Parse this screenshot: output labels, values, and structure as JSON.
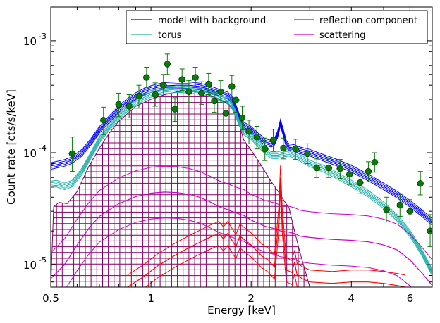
{
  "chart_data": {
    "type": "line",
    "title": "",
    "xlabel": "Energy [keV]",
    "ylabel": "Count rate [cts/s/keV]",
    "xscale": "log",
    "yscale": "log",
    "xlim": [
      0.5,
      7.0
    ],
    "ylim": [
      6.3e-06,
      0.002
    ],
    "grid": false,
    "legend_position": "top-right",
    "x_ticks": [
      {
        "value": 0.5,
        "label": "0.5"
      },
      {
        "value": 1,
        "label": "1"
      },
      {
        "value": 2,
        "label": "2"
      },
      {
        "value": 4,
        "label": "4"
      },
      {
        "value": 6,
        "label": "6"
      }
    ],
    "y_ticks": [
      {
        "value": 1e-05,
        "base": "10",
        "exp": "-5"
      },
      {
        "value": 0.0001,
        "base": "10",
        "exp": "-4"
      },
      {
        "value": 0.001,
        "base": "10",
        "exp": "-3"
      }
    ],
    "legend": [
      {
        "label": "model with background",
        "color": "#0000ff"
      },
      {
        "label": "torus",
        "color": "#20b2aa"
      },
      {
        "label": "reflection component",
        "color": "#ff0000"
      },
      {
        "label": "scattering",
        "color": "#cc00cc"
      }
    ],
    "series": [
      {
        "name": "model with background",
        "color": "#0000ff",
        "band_factor": 1.07,
        "points": [
          [
            0.5,
            7.6e-05
          ],
          [
            0.52,
            7.8e-05
          ],
          [
            0.55,
            8.1e-05
          ],
          [
            0.58,
            8.6e-05
          ],
          [
            0.62,
            0.0001
          ],
          [
            0.66,
            0.000125
          ],
          [
            0.7,
            0.00016
          ],
          [
            0.75,
            0.0002
          ],
          [
            0.8,
            0.000245
          ],
          [
            0.85,
            0.000285
          ],
          [
            0.9,
            0.00032
          ],
          [
            0.95,
            0.00035
          ],
          [
            1.0,
            0.00037
          ],
          [
            1.05,
            0.000385
          ],
          [
            1.1,
            0.000395
          ],
          [
            1.2,
            0.0004
          ],
          [
            1.3,
            0.0004
          ],
          [
            1.4,
            0.00039
          ],
          [
            1.5,
            0.00037
          ],
          [
            1.6,
            0.000345
          ],
          [
            1.7,
            0.000325
          ],
          [
            1.75,
            0.0003
          ],
          [
            1.8,
            0.00025
          ],
          [
            1.85,
            0.0002
          ],
          [
            1.9,
            0.000175
          ],
          [
            2.0,
            0.00016
          ],
          [
            2.1,
            0.00014
          ],
          [
            2.2,
            0.000125
          ],
          [
            2.3,
            0.00012
          ],
          [
            2.35,
            0.000125
          ],
          [
            2.4,
            0.000145
          ],
          [
            2.45,
            0.000185
          ],
          [
            2.5,
            0.00015
          ],
          [
            2.55,
            0.00012
          ],
          [
            2.6,
            0.000112
          ],
          [
            2.7,
            0.00011
          ],
          [
            2.8,
            0.000105
          ],
          [
            3.0,
            0.0001
          ],
          [
            3.3,
            9e-05
          ],
          [
            3.6,
            8.2e-05
          ],
          [
            4.0,
            7.2e-05
          ],
          [
            4.5,
            6e-05
          ],
          [
            5.0,
            5e-05
          ],
          [
            5.5,
            4.2e-05
          ],
          [
            6.0,
            3.5e-05
          ],
          [
            6.5,
            2.9e-05
          ],
          [
            7.0,
            2.4e-05
          ]
        ]
      },
      {
        "name": "torus",
        "color": "#20b2aa",
        "band_factor": 1.07,
        "points": [
          [
            0.5,
            5.2e-05
          ],
          [
            0.52,
            5.3e-05
          ],
          [
            0.55,
            5e-05
          ],
          [
            0.58,
            5.3e-05
          ],
          [
            0.62,
            6.8e-05
          ],
          [
            0.66,
            9.5e-05
          ],
          [
            0.7,
            0.00013
          ],
          [
            0.75,
            0.00017
          ],
          [
            0.8,
            0.00021
          ],
          [
            0.85,
            0.00025
          ],
          [
            0.9,
            0.000285
          ],
          [
            0.95,
            0.00031
          ],
          [
            1.0,
            0.000335
          ],
          [
            1.05,
            0.00035
          ],
          [
            1.1,
            0.00036
          ],
          [
            1.2,
            0.00037
          ],
          [
            1.3,
            0.000365
          ],
          [
            1.4,
            0.000355
          ],
          [
            1.5,
            0.00034
          ],
          [
            1.6,
            0.000315
          ],
          [
            1.7,
            0.00029
          ],
          [
            1.75,
            0.000265
          ],
          [
            1.8,
            0.00022
          ],
          [
            1.85,
            0.00018
          ],
          [
            1.9,
            0.000155
          ],
          [
            2.0,
            0.00014
          ],
          [
            2.1,
            0.00012
          ],
          [
            2.2,
            0.000105
          ],
          [
            2.3,
            9.5e-05
          ],
          [
            2.4,
            9.5e-05
          ],
          [
            2.5,
            9.8e-05
          ],
          [
            2.6,
            0.0001
          ],
          [
            2.7,
            9.5e-05
          ],
          [
            2.8,
            9e-05
          ],
          [
            3.0,
            8e-05
          ],
          [
            3.3,
            7.2e-05
          ],
          [
            3.6,
            6.3e-05
          ],
          [
            4.0,
            5.3e-05
          ],
          [
            4.5,
            4.3e-05
          ],
          [
            5.0,
            3.4e-05
          ],
          [
            5.5,
            2.6e-05
          ],
          [
            6.0,
            1.9e-05
          ],
          [
            6.5,
            1.3e-05
          ],
          [
            7.0,
            8.5e-06
          ]
        ]
      },
      {
        "name": "reflection component",
        "color": "#ff0000",
        "band_factor": 1.28,
        "points": [
          [
            0.85,
            6.3e-06
          ],
          [
            0.95,
            7.8e-06
          ],
          [
            1.05,
            9.8e-06
          ],
          [
            1.2,
            1.25e-05
          ],
          [
            1.35,
            1.5e-05
          ],
          [
            1.5,
            1.75e-05
          ],
          [
            1.6,
            1.9e-05
          ],
          [
            1.65,
            1.7e-05
          ],
          [
            1.7,
            1.9e-05
          ],
          [
            1.8,
            1.45e-05
          ],
          [
            1.85,
            1.8e-05
          ],
          [
            2.0,
            1.5e-05
          ],
          [
            2.15,
            1.2e-05
          ],
          [
            2.25,
            1.1e-05
          ],
          [
            2.35,
            9.5e-06
          ],
          [
            2.42,
            2.5e-05
          ],
          [
            2.45,
            6e-05
          ],
          [
            2.48,
            2.5e-05
          ],
          [
            2.55,
            9e-06
          ],
          [
            2.65,
            8.5e-06
          ],
          [
            2.7,
            1.05e-05
          ],
          [
            2.75,
            8e-06
          ],
          [
            2.85,
            7.5e-06
          ],
          [
            3.0,
            7e-06
          ],
          [
            3.5,
            6.8e-06
          ],
          [
            4.0,
            7e-06
          ],
          [
            4.5,
            7e-06
          ],
          [
            5.0,
            6.8e-06
          ],
          [
            5.5,
            6.5e-06
          ],
          [
            5.8,
            6.3e-06
          ]
        ]
      },
      {
        "name": "scattering",
        "color": "#cc00cc",
        "band_factor": 1.7,
        "points": [
          [
            0.5,
            7.5e-06
          ],
          [
            0.55,
            1e-05
          ],
          [
            0.6,
            1.5e-05
          ],
          [
            0.65,
            2.1e-05
          ],
          [
            0.7,
            2.7e-05
          ],
          [
            0.8,
            3.5e-05
          ],
          [
            0.9,
            4.05e-05
          ],
          [
            1.0,
            4.35e-05
          ],
          [
            1.1,
            4.45e-05
          ],
          [
            1.2,
            4.4e-05
          ],
          [
            1.3,
            4.25e-05
          ],
          [
            1.4,
            4e-05
          ],
          [
            1.5,
            3.65e-05
          ],
          [
            1.6,
            3.3e-05
          ],
          [
            1.7,
            3.1e-05
          ],
          [
            1.8,
            2.9e-05
          ],
          [
            1.9,
            2.75e-05
          ],
          [
            2.0,
            2.5e-05
          ],
          [
            2.2,
            2.2e-05
          ],
          [
            2.35,
            2.1e-05
          ],
          [
            2.45,
            2e-05
          ],
          [
            2.6,
            1.95e-05
          ],
          [
            2.7,
            1.9e-05
          ],
          [
            2.8,
            1.8e-05
          ],
          [
            3.0,
            1.75e-05
          ],
          [
            3.5,
            1.68e-05
          ],
          [
            4.0,
            1.65e-05
          ],
          [
            4.5,
            1.6e-05
          ],
          [
            5.0,
            1.5e-05
          ],
          [
            5.5,
            1.35e-05
          ],
          [
            6.0,
            1.1e-05
          ],
          [
            6.5,
            8.5e-06
          ],
          [
            7.0,
            6.5e-06
          ]
        ]
      },
      {
        "name": "",
        "role": "hatched-region",
        "color": "#800060",
        "points": [
          [
            0.5,
            6.3e-06
          ],
          [
            0.51,
            3.3e-05
          ],
          [
            0.53,
            3.6e-05
          ],
          [
            0.56,
            3.5e-05
          ],
          [
            0.6,
            4.5e-05
          ],
          [
            0.65,
            7.5e-05
          ],
          [
            0.7,
            0.00011
          ],
          [
            0.75,
            0.00015
          ],
          [
            0.8,
            0.00019
          ],
          [
            0.9,
            0.00026
          ],
          [
            1.0,
            0.0003
          ],
          [
            1.1,
            0.00033
          ],
          [
            1.2,
            0.00035
          ],
          [
            1.3,
            0.000355
          ],
          [
            1.4,
            0.000345
          ],
          [
            1.5,
            0.000325
          ],
          [
            1.6,
            0.0003
          ],
          [
            1.7,
            0.000275
          ],
          [
            1.8,
            0.00023
          ],
          [
            1.85,
            0.00017
          ],
          [
            1.9,
            0.00013
          ],
          [
            2.0,
            0.000105
          ],
          [
            2.1,
            8.5e-05
          ],
          [
            2.2,
            6.8e-05
          ],
          [
            2.3,
            5.5e-05
          ],
          [
            2.4,
            4.6e-05
          ],
          [
            2.5,
            3.8e-05
          ],
          [
            2.6,
            3.2e-05
          ],
          [
            2.7,
            2e-05
          ],
          [
            2.8,
            1.3e-05
          ],
          [
            2.9,
            9e-06
          ],
          [
            3.0,
            6.3e-06
          ]
        ]
      }
    ],
    "data_points": [
      {
        "x": 0.58,
        "y": 9.8e-05,
        "yerr_lo": 6.8e-05,
        "yerr_hi": 0.000138
      },
      {
        "x": 0.72,
        "y": 0.000195,
        "yerr_lo": 0.000145,
        "yerr_hi": 0.000255
      },
      {
        "x": 0.8,
        "y": 0.00027,
        "yerr_lo": 0.00021,
        "yerr_hi": 0.00034
      },
      {
        "x": 0.86,
        "y": 0.00026,
        "yerr_lo": 0.000205,
        "yerr_hi": 0.00033
      },
      {
        "x": 0.92,
        "y": 0.00032,
        "yerr_lo": 0.00025,
        "yerr_hi": 0.0004
      },
      {
        "x": 0.97,
        "y": 0.00047,
        "yerr_lo": 0.00038,
        "yerr_hi": 0.00058
      },
      {
        "x": 1.03,
        "y": 0.00033,
        "yerr_lo": 0.00026,
        "yerr_hi": 0.00042
      },
      {
        "x": 1.09,
        "y": 0.0004,
        "yerr_lo": 0.00032,
        "yerr_hi": 0.0005
      },
      {
        "x": 1.12,
        "y": 0.00062,
        "yerr_lo": 0.0005,
        "yerr_hi": 0.00076
      },
      {
        "x": 1.18,
        "y": 0.000245,
        "yerr_lo": 0.00019,
        "yerr_hi": 0.00031
      },
      {
        "x": 1.24,
        "y": 0.00045,
        "yerr_lo": 0.00036,
        "yerr_hi": 0.00056
      },
      {
        "x": 1.3,
        "y": 0.00035,
        "yerr_lo": 0.00028,
        "yerr_hi": 0.00044
      },
      {
        "x": 1.36,
        "y": 0.00047,
        "yerr_lo": 0.00038,
        "yerr_hi": 0.00058
      },
      {
        "x": 1.42,
        "y": 0.00034,
        "yerr_lo": 0.00027,
        "yerr_hi": 0.00043
      },
      {
        "x": 1.49,
        "y": 0.00041,
        "yerr_lo": 0.00033,
        "yerr_hi": 0.00051
      },
      {
        "x": 1.55,
        "y": 0.00029,
        "yerr_lo": 0.00023,
        "yerr_hi": 0.00037
      },
      {
        "x": 1.62,
        "y": 0.00035,
        "yerr_lo": 0.00028,
        "yerr_hi": 0.00044
      },
      {
        "x": 1.68,
        "y": 0.000225,
        "yerr_lo": 0.000175,
        "yerr_hi": 0.000285
      },
      {
        "x": 1.75,
        "y": 0.00039,
        "yerr_lo": 0.00031,
        "yerr_hi": 0.00049
      },
      {
        "x": 1.8,
        "y": 0.000295,
        "yerr_lo": 0.00023,
        "yerr_hi": 0.00037
      },
      {
        "x": 1.88,
        "y": 0.000205,
        "yerr_lo": 0.00016,
        "yerr_hi": 0.00026
      },
      {
        "x": 1.97,
        "y": 0.000155,
        "yerr_lo": 0.00012,
        "yerr_hi": 0.000195
      },
      {
        "x": 2.08,
        "y": 0.000138,
        "yerr_lo": 0.000108,
        "yerr_hi": 0.000172
      },
      {
        "x": 2.2,
        "y": 0.000108,
        "yerr_lo": 8.5e-05,
        "yerr_hi": 0.000135
      },
      {
        "x": 2.33,
        "y": 0.00013,
        "yerr_lo": 0.000103,
        "yerr_hi": 0.000162
      },
      {
        "x": 2.5,
        "y": 0.00011,
        "yerr_lo": 8.8e-05,
        "yerr_hi": 0.000135
      },
      {
        "x": 2.72,
        "y": 0.000108,
        "yerr_lo": 8.7e-05,
        "yerr_hi": 0.000132
      },
      {
        "x": 2.95,
        "y": 9.8e-05,
        "yerr_lo": 8e-05,
        "yerr_hi": 0.00012
      },
      {
        "x": 3.15,
        "y": 7.3e-05,
        "yerr_lo": 6e-05,
        "yerr_hi": 8.8e-05
      },
      {
        "x": 3.42,
        "y": 7.3e-05,
        "yerr_lo": 6e-05,
        "yerr_hi": 8.8e-05
      },
      {
        "x": 3.7,
        "y": 7.2e-05,
        "yerr_lo": 5.9e-05,
        "yerr_hi": 8.7e-05
      },
      {
        "x": 3.95,
        "y": 6.4e-05,
        "yerr_lo": 5.2e-05,
        "yerr_hi": 7.8e-05
      },
      {
        "x": 4.25,
        "y": 5.4e-05,
        "yerr_lo": 4.3e-05,
        "yerr_hi": 6.7e-05
      },
      {
        "x": 4.5,
        "y": 6.8e-05,
        "yerr_lo": 5.5e-05,
        "yerr_hi": 8.3e-05
      },
      {
        "x": 4.7,
        "y": 8.2e-05,
        "yerr_lo": 6.7e-05,
        "yerr_hi": 0.0001
      },
      {
        "x": 5.1,
        "y": 3.1e-05,
        "yerr_lo": 2.4e-05,
        "yerr_hi": 4e-05
      },
      {
        "x": 5.6,
        "y": 3.4e-05,
        "yerr_lo": 2.7e-05,
        "yerr_hi": 4.3e-05
      },
      {
        "x": 6.0,
        "y": 3e-05,
        "yerr_lo": 2.4e-05,
        "yerr_hi": 3.8e-05
      },
      {
        "x": 6.45,
        "y": 5.3e-05,
        "yerr_lo": 4.2e-05,
        "yerr_hi": 6.8e-05
      },
      {
        "x": 6.9,
        "y": 2e-05,
        "yerr_lo": 1.45e-05,
        "yerr_hi": 2.8e-05
      }
    ]
  }
}
